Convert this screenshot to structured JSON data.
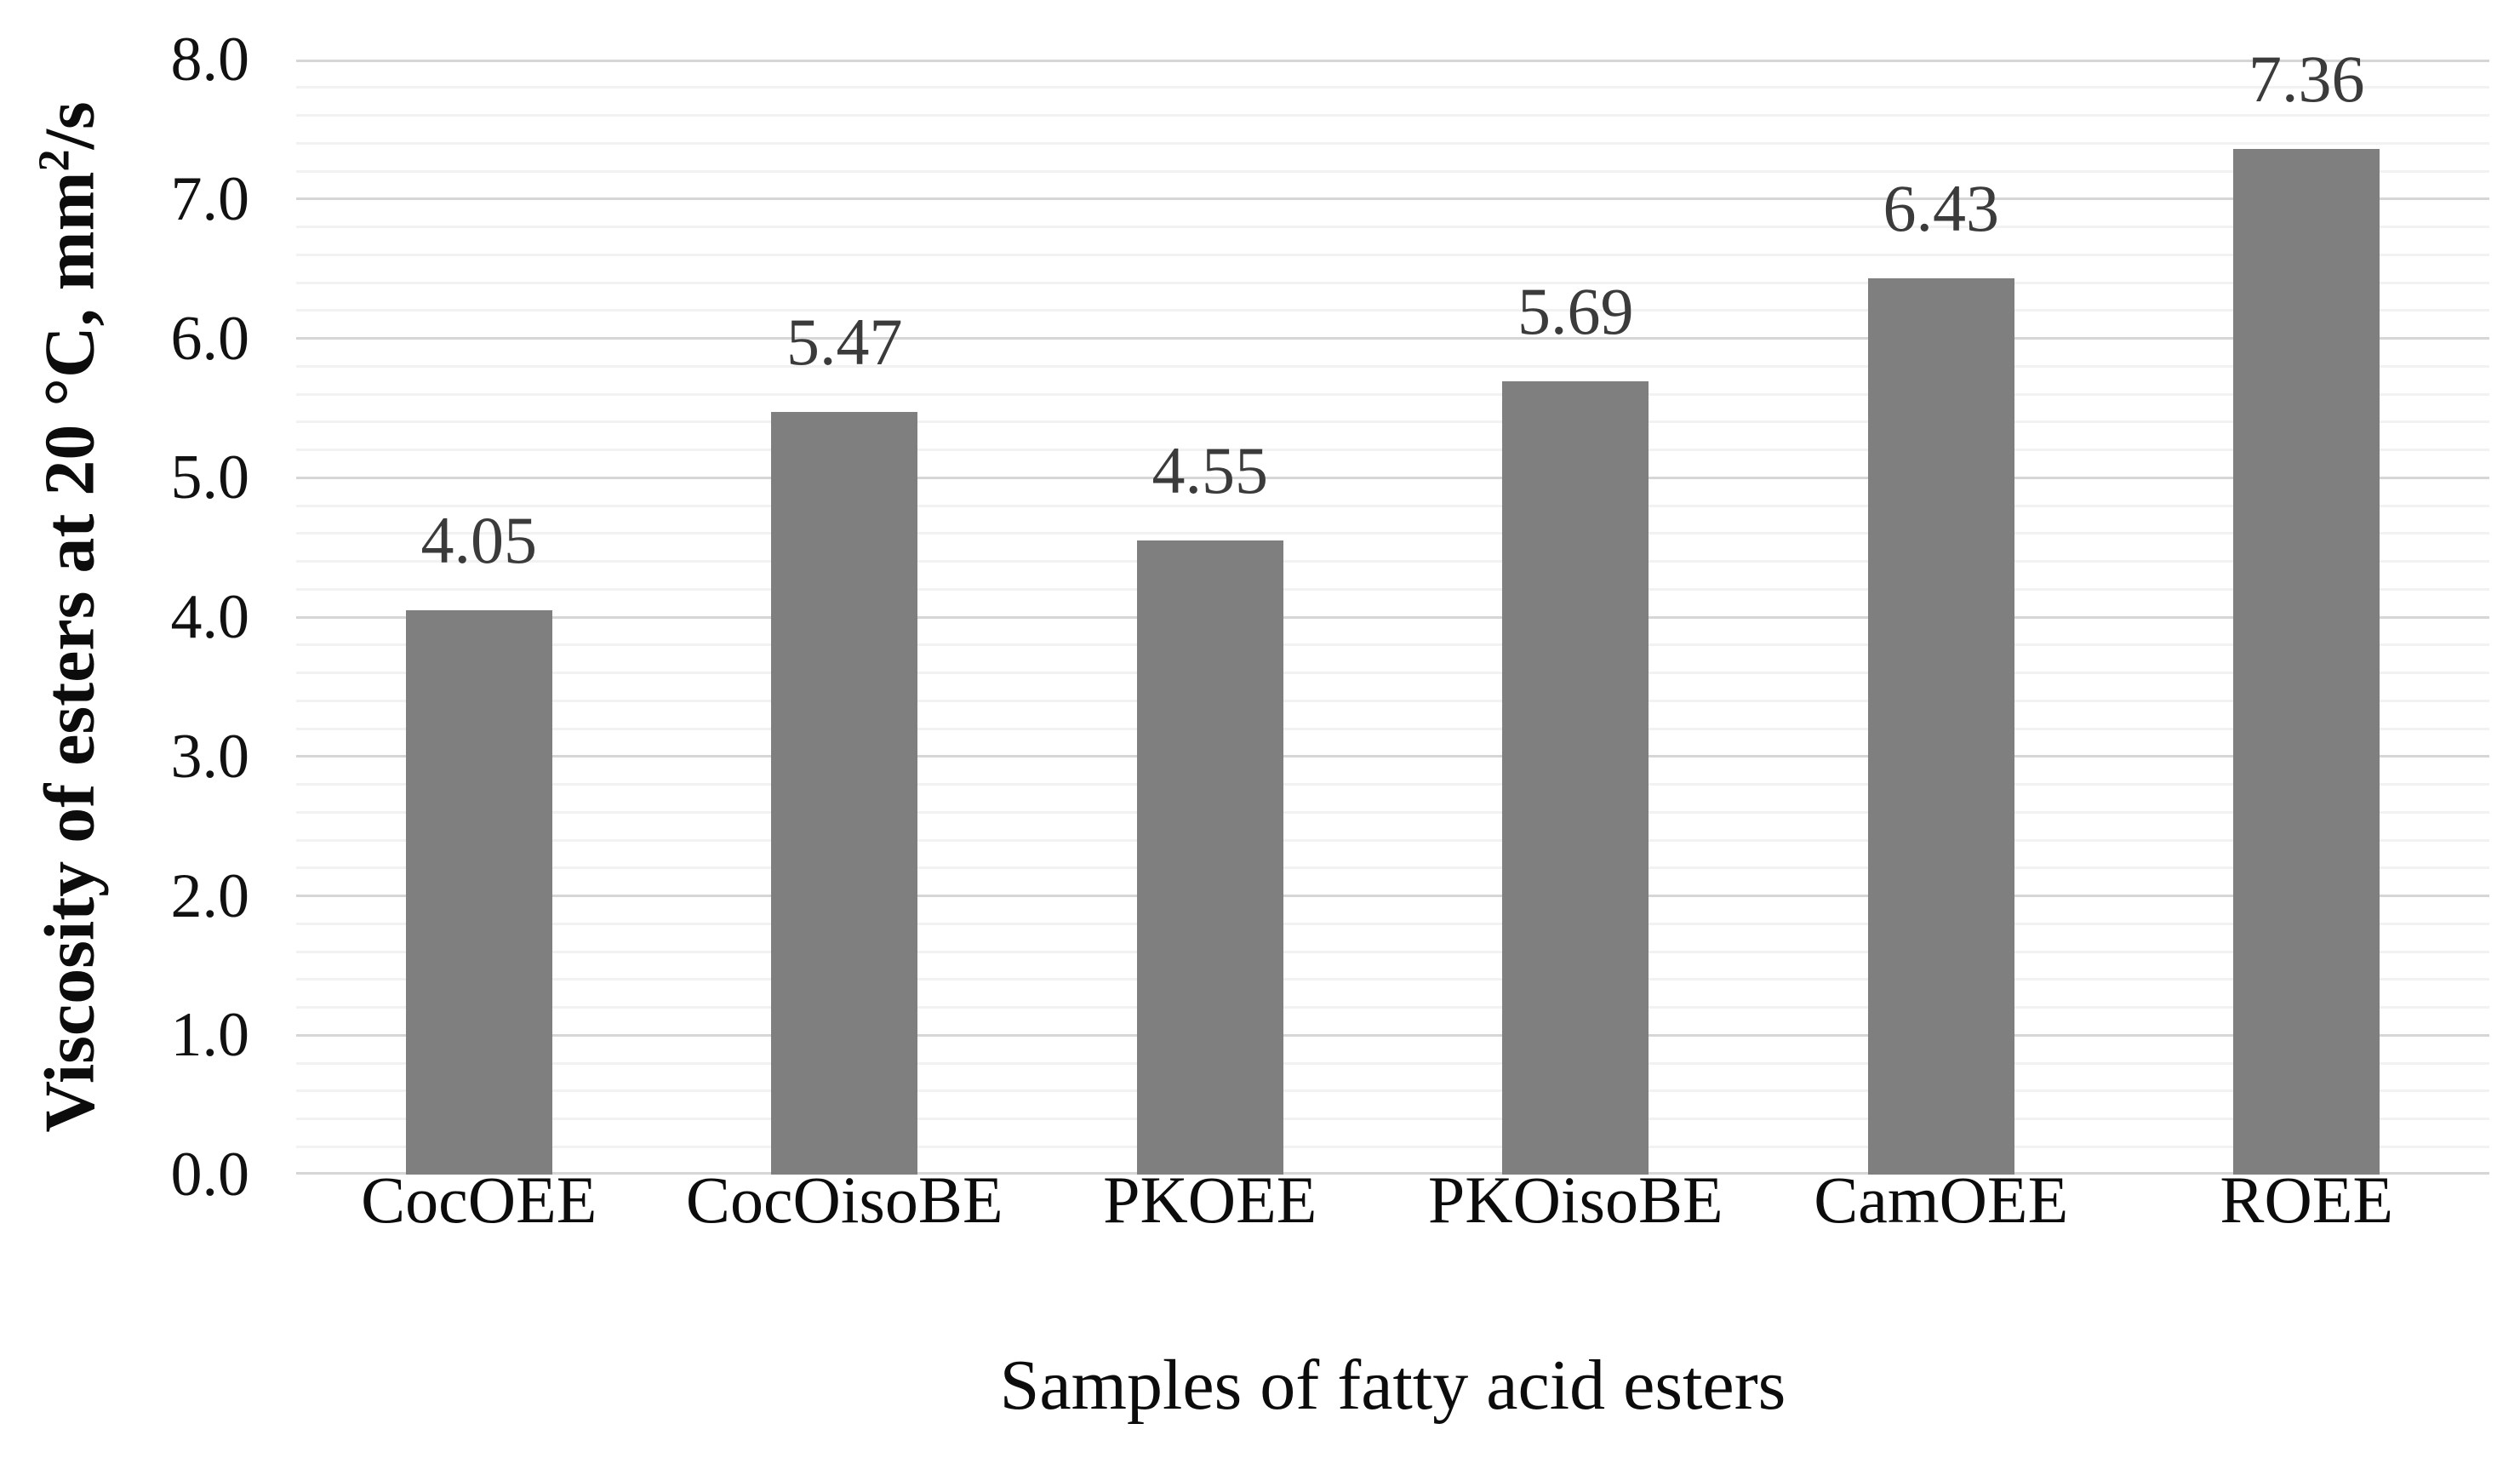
{
  "chart_data": {
    "type": "bar",
    "title": "",
    "categories": [
      "CocOEE",
      "CocOisoBE",
      "PKOEE",
      "PKOisoBE",
      "CamOEE",
      "ROEE"
    ],
    "values": [
      4.05,
      5.47,
      4.55,
      5.69,
      6.43,
      7.36
    ],
    "data_labels": [
      "4.05",
      "5.47",
      "4.55",
      "5.69",
      "6.43",
      "7.36"
    ],
    "xlabel": "Samples of fatty acid esters",
    "ylabel": "Viscosity of esters at 20 °C, mm²/s",
    "ylim": [
      0,
      8
    ],
    "ytick_labels": [
      "0.0",
      "1.0",
      "2.0",
      "3.0",
      "4.0",
      "5.0",
      "6.0",
      "7.0",
      "8.0"
    ],
    "ytick_step": 1.0,
    "minor_grid_step": 0.2,
    "grid": "major and minor horizontal gridlines",
    "legend": false,
    "colors": {
      "bar_fill": "#7f7f7f",
      "major_gridline": "#d6d6d6",
      "minor_gridline": "#f2f2f2",
      "data_label_text": "#3b3b3b",
      "axis_text": "#0c0c0c",
      "background": "#ffffff"
    }
  }
}
